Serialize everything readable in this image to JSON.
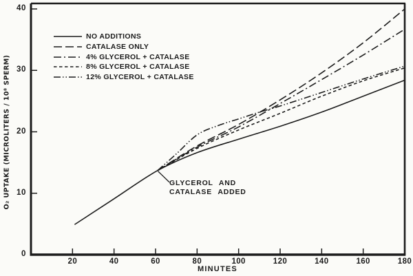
{
  "figure": {
    "background": "#fbfbf8",
    "ink": "#1b1b1b"
  },
  "chart_data": {
    "type": "line",
    "title": "",
    "xlabel": "MINUTES",
    "ylabel": "O₂ UPTAKE (MICROLITERS / 10⁸ SPERM)",
    "xlim": [
      0,
      180
    ],
    "ylim": [
      0,
      40
    ],
    "xticks": [
      20,
      40,
      60,
      80,
      100,
      120,
      140,
      160,
      180
    ],
    "yticks": [
      0,
      10,
      20,
      30,
      40
    ],
    "grid": false,
    "legend_position": "upper-left-inside",
    "series": [
      {
        "name": "NO ADDITIONS",
        "dash": "",
        "points": [
          [
            21,
            4.9
          ],
          [
            40,
            9.1
          ],
          [
            61,
            13.7
          ],
          [
            80,
            16.6
          ],
          [
            100,
            18.8
          ],
          [
            120,
            20.9
          ],
          [
            140,
            23.2
          ],
          [
            160,
            25.8
          ],
          [
            180,
            28.4
          ]
        ]
      },
      {
        "name": "CATALASE ONLY",
        "dash": "12 5",
        "points": [
          [
            61,
            13.7
          ],
          [
            80,
            17.7
          ],
          [
            100,
            21.2
          ],
          [
            120,
            25.2
          ],
          [
            140,
            29.6
          ],
          [
            160,
            34.5
          ],
          [
            180,
            40
          ]
        ]
      },
      {
        "name": "4% GLYCEROL + CATALASE",
        "dash": "11 4 2 4",
        "points": [
          [
            61,
            13.7
          ],
          [
            80,
            17.5
          ],
          [
            100,
            20.8
          ],
          [
            120,
            24.6
          ],
          [
            140,
            28.5
          ],
          [
            160,
            32.5
          ],
          [
            180,
            36.7
          ]
        ]
      },
      {
        "name": "8% GLYCEROL + CATALASE",
        "dash": "4.5 3.5",
        "points": [
          [
            61,
            13.7
          ],
          [
            80,
            17.3
          ],
          [
            100,
            20.3
          ],
          [
            120,
            23.0
          ],
          [
            140,
            25.8
          ],
          [
            160,
            28.3
          ],
          [
            180,
            30.4
          ]
        ]
      },
      {
        "name": "12% GLYCEROL + CATALASE",
        "dash": "10 3 1.5 3 1.5 3",
        "points": [
          [
            61,
            13.7
          ],
          [
            70,
            16.4
          ],
          [
            80,
            19.5
          ],
          [
            90,
            21.0
          ],
          [
            100,
            22.1
          ],
          [
            110,
            23.2
          ],
          [
            120,
            24.2
          ],
          [
            140,
            26.4
          ],
          [
            160,
            28.6
          ],
          [
            180,
            30.7
          ]
        ]
      }
    ],
    "annotation": {
      "lines": [
        "GLYCEROL AND",
        "CATALASE ADDED"
      ],
      "at": {
        "x": 61,
        "y": 13.7
      }
    }
  }
}
